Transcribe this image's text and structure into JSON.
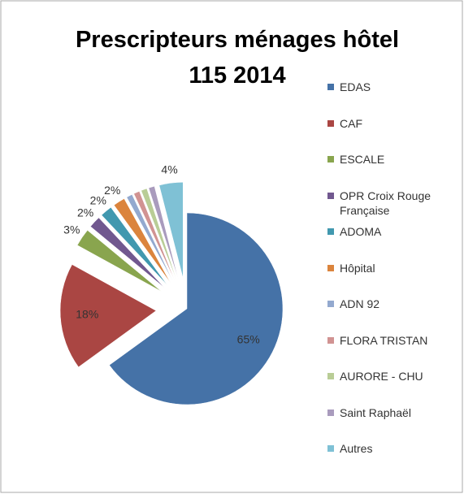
{
  "chart_data": {
    "type": "pie",
    "title": [
      "Prescripteurs ménages hôtel",
      "115 2014"
    ],
    "categories": [
      "EDAS",
      "CAF",
      "ESCALE",
      "OPR Croix Rouge Française",
      "ADOMA",
      "Hôpital",
      "ADN 92",
      "FLORA TRISTAN",
      "AURORE - CHU",
      "Saint Raphaël",
      "Autres"
    ],
    "values": [
      65,
      18,
      3,
      2,
      2,
      2,
      1,
      1,
      1,
      1,
      4
    ],
    "value_labels": [
      "65%",
      "18%",
      "3%",
      "2%",
      "2%",
      "2%",
      null,
      null,
      null,
      null,
      "4%"
    ],
    "colors": [
      "#4572a7",
      "#aa4643",
      "#89a54e",
      "#71588f",
      "#4198af",
      "#db843d",
      "#93a9cf",
      "#d19392",
      "#b9cd96",
      "#a99bbd",
      "#7fc1d5"
    ],
    "legend": "right"
  }
}
